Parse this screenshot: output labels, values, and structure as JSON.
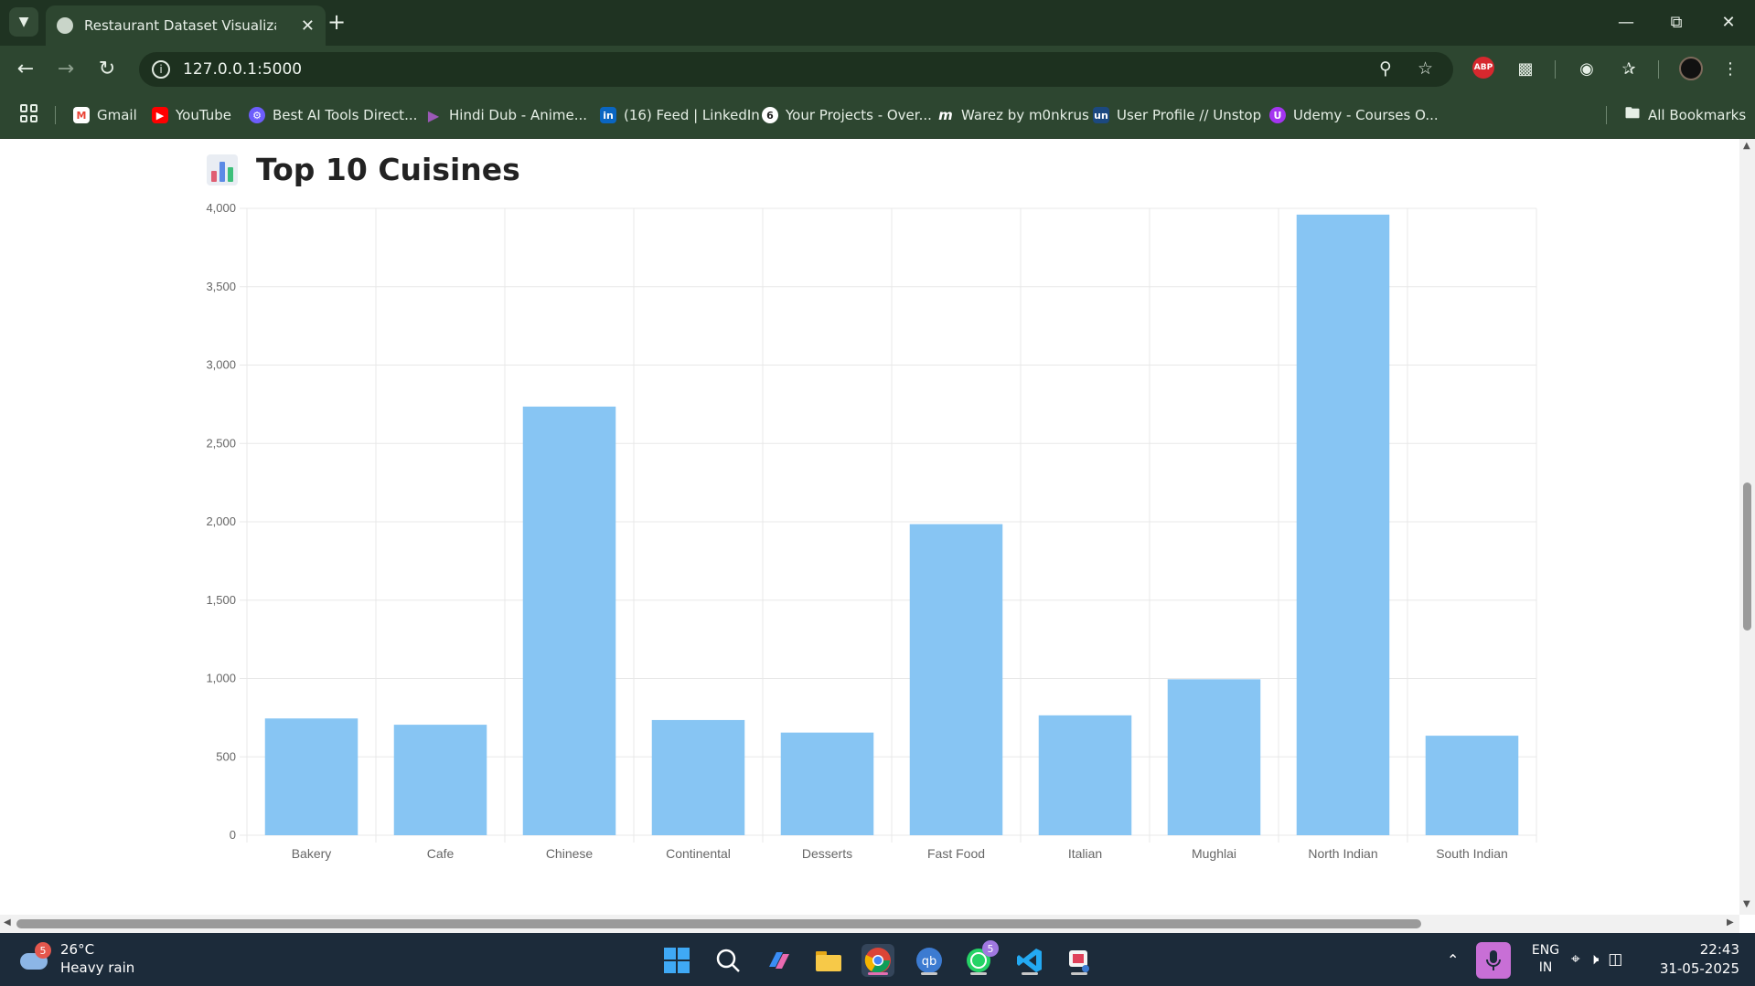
{
  "browser": {
    "tab_title": "Restaurant Dataset Visualization",
    "url": "127.0.0.1:5000",
    "bookmarks": [
      {
        "label": "Gmail",
        "icon": "gmail-icon",
        "color": "#ea4335"
      },
      {
        "label": "YouTube",
        "icon": "youtube-icon",
        "color": "#ff0000"
      },
      {
        "label": "Best AI Tools Direct...",
        "icon": "gear-icon",
        "color": "#6d5dfc"
      },
      {
        "label": "Hindi Dub - Anime...",
        "icon": "play-icon",
        "color": "#8e44ad"
      },
      {
        "label": "(16) Feed | LinkedIn",
        "icon": "linkedin-icon",
        "color": "#0a66c2"
      },
      {
        "label": "Your Projects - Over...",
        "icon": "projects-icon",
        "color": "#ffffff"
      },
      {
        "label": "Warez by m0nkrus",
        "icon": "m-icon",
        "color": "#222222"
      },
      {
        "label": "User Profile // Unstop",
        "icon": "unstop-icon",
        "color": "#1c4980"
      },
      {
        "label": "Udemy - Courses O...",
        "icon": "udemy-icon",
        "color": "#a435f0"
      }
    ],
    "all_bookmarks": "All Bookmarks"
  },
  "page": {
    "heading": "Top 10 Cuisines"
  },
  "chart_data": {
    "type": "bar",
    "categories": [
      "Bakery",
      "Cafe",
      "Chinese",
      "Continental",
      "Desserts",
      "Fast Food",
      "Italian",
      "Mughlai",
      "North Indian",
      "South Indian"
    ],
    "values": [
      745,
      705,
      2735,
      735,
      655,
      1985,
      765,
      995,
      3960,
      635
    ],
    "ylim": [
      0,
      4000
    ],
    "yticks": [
      0,
      500,
      1000,
      1500,
      2000,
      2500,
      3000,
      3500,
      4000
    ],
    "ytick_labels": [
      "0",
      "500",
      "1,000",
      "1,500",
      "2,000",
      "2,500",
      "3,000",
      "3,500",
      "4,000"
    ],
    "grid": true,
    "bar_color": "#87c5f3",
    "grid_color": "#e8e8e8",
    "title": "",
    "xlabel": "",
    "ylabel": ""
  },
  "taskbar": {
    "weather_temp": "26°C",
    "weather_desc": "Heavy rain",
    "weather_badge": "5",
    "whatsapp_badge": "5",
    "lang_top": "ENG",
    "lang_bottom": "IN",
    "time": "22:43",
    "date": "31-05-2025"
  }
}
